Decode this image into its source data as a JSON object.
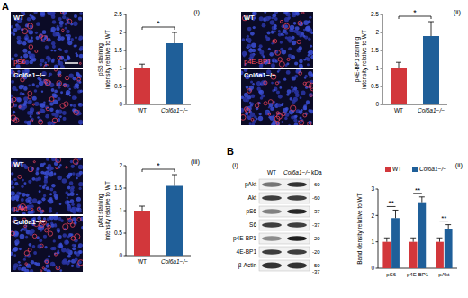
{
  "panel_labels": [
    "A",
    "B"
  ],
  "images": [
    {
      "top": "WT",
      "bottom": "Col6a1−/−",
      "stain": "pS6"
    },
    {
      "top": "WT",
      "bottom": "Col6a1−/−",
      "stain": "p4E-BP1"
    },
    {
      "top": "WT",
      "bottom": "Col6a1−/−",
      "stain": "pAkt"
    }
  ],
  "chart_data": [
    {
      "type": "bar",
      "label": "(i)",
      "y_label": [
        "pS6 staining",
        "intensity relative to WT"
      ],
      "categories": [
        "WT",
        "Col6a1−/−"
      ],
      "values": [
        1.0,
        1.7
      ],
      "errors": [
        0.12,
        0.3
      ],
      "colors": [
        "#d2373b",
        "#1f5f99"
      ],
      "ylim": [
        0,
        2.5
      ],
      "yticks": [
        0,
        0.5,
        1,
        1.5,
        2,
        2.5
      ],
      "annotations": [
        "*"
      ]
    },
    {
      "type": "bar",
      "label": "(ii)",
      "y_label": [
        "p4E-BP1 staining",
        "intensity relative to WT"
      ],
      "categories": [
        "WT",
        "Col6a1−/−"
      ],
      "values": [
        1.0,
        1.9
      ],
      "errors": [
        0.17,
        0.4
      ],
      "colors": [
        "#d2373b",
        "#1f5f99"
      ],
      "ylim": [
        0,
        2.5
      ],
      "yticks": [
        0,
        0.5,
        1,
        1.5,
        2,
        2.5
      ],
      "annotations": [
        "*"
      ]
    },
    {
      "type": "bar",
      "label": "(iii)",
      "y_label": [
        "pAkt staining",
        "intensity relative to WT"
      ],
      "categories": [
        "WT",
        "Col6a1−/−"
      ],
      "values": [
        1.0,
        1.55
      ],
      "errors": [
        0.1,
        0.25
      ],
      "colors": [
        "#d2373b",
        "#1f5f99"
      ],
      "ylim": [
        0,
        2
      ],
      "yticks": [
        0,
        0.5,
        1,
        1.5,
        2
      ],
      "annotations": [
        "*"
      ]
    },
    {
      "type": "bar",
      "label": "(ii)",
      "y_label": [
        "Band density relative to WT"
      ],
      "categories": [
        "pS6",
        "p4E-BP1",
        "pAkt"
      ],
      "series": [
        {
          "name": "WT",
          "color": "#d2373b",
          "values": [
            1.0,
            1.0,
            1.0
          ],
          "errors": [
            0.15,
            0.15,
            0.15
          ]
        },
        {
          "name": "Col6a1−/−",
          "color": "#1f5f99",
          "values": [
            1.9,
            2.5,
            1.5
          ],
          "errors": [
            0.3,
            0.2,
            0.15
          ]
        }
      ],
      "ylim": [
        0,
        3
      ],
      "yticks": [
        0,
        1,
        2,
        3
      ],
      "legend": "top",
      "annotations": [
        "**",
        "**",
        "**"
      ]
    }
  ],
  "blot": {
    "label": "(i)",
    "lanes": [
      "WT",
      "Col6a1−/−"
    ],
    "unit": "kDa",
    "rows": [
      {
        "name": "pAkt",
        "kda": "-60"
      },
      {
        "name": "Akt",
        "kda": "-60"
      },
      {
        "name": "pS6",
        "kda": "-37"
      },
      {
        "name": "S6",
        "kda": "-37"
      },
      {
        "name": "p4E-BP1",
        "kda": "-20"
      },
      {
        "name": "4E-BP1",
        "kda": "-20"
      },
      {
        "name": "β-Actin",
        "kda": "-50"
      }
    ],
    "extra_kda": "-37"
  }
}
